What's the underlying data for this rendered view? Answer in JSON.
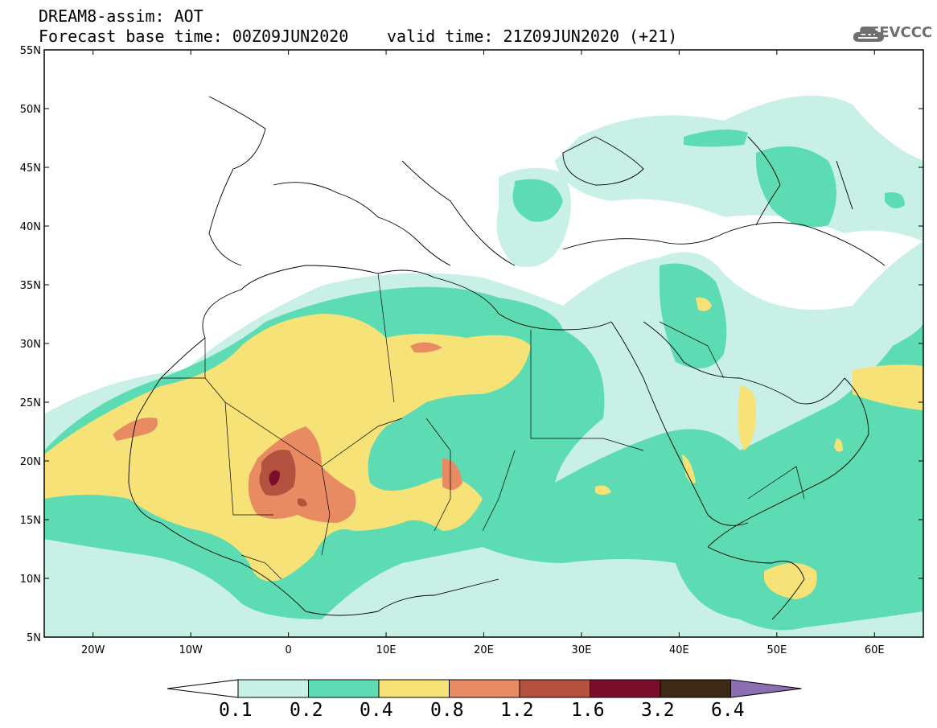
{
  "header": {
    "title_line1": "DREAM8-assim: AOT",
    "title_line2": "Forecast base time: 00Z09JUN2020",
    "title_line3": "valid time: 21Z09JUN2020 (+21)",
    "logo_text": "SEEVCCC"
  },
  "map": {
    "variable": "AOT",
    "lon_range": [
      -25,
      65
    ],
    "lat_range": [
      5,
      55
    ],
    "lat_ticks": [
      "55N",
      "50N",
      "45N",
      "40N",
      "35N",
      "30N",
      "25N",
      "20N",
      "15N",
      "10N",
      "5N"
    ],
    "lon_ticks": [
      "20W",
      "10W",
      "0",
      "10E",
      "20E",
      "30E",
      "40E",
      "50E",
      "60E"
    ]
  },
  "colorbar": {
    "labels": [
      "0.1",
      "0.2",
      "0.4",
      "0.8",
      "1.2",
      "1.6",
      "3.2",
      "6.4"
    ],
    "colors": [
      "#ffffff",
      "#c8f0e6",
      "#5ddcb4",
      "#f7e277",
      "#e88b63",
      "#b4513f",
      "#7a0e2b",
      "#3e2a14",
      "#8c6fb3"
    ]
  }
}
